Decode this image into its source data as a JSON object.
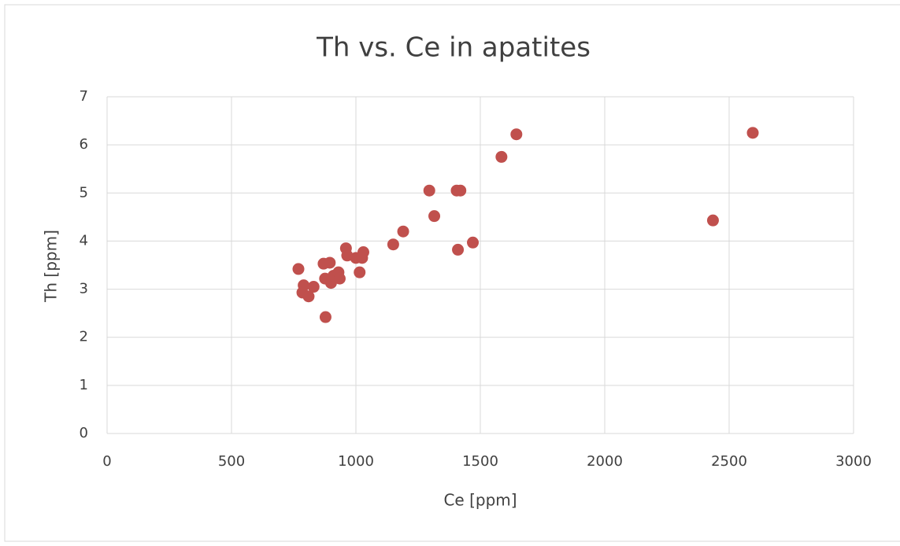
{
  "chart_data": {
    "type": "scatter",
    "title": "Th vs. Ce in apatites",
    "x_label": "Ce [ppm]",
    "y_label": "Th [ppm]",
    "series": [
      {
        "color": "#c0504d",
        "x": [
          769,
          790,
          785,
          810,
          830,
          870,
          878,
          876,
          895,
          900,
          910,
          930,
          935,
          960,
          965,
          1000,
          1015,
          1025,
          1030,
          1150,
          1190,
          1295,
          1315,
          1405,
          1420,
          1410,
          1470,
          1585,
          1645,
          2435,
          2595
        ],
        "values": [
          3.42,
          3.08,
          2.93,
          2.85,
          3.05,
          3.53,
          2.42,
          3.22,
          3.55,
          3.13,
          3.28,
          3.35,
          3.22,
          3.85,
          3.7,
          3.65,
          3.35,
          3.65,
          3.77,
          3.93,
          4.2,
          5.05,
          4.52,
          5.05,
          5.05,
          3.82,
          3.97,
          5.75,
          6.22,
          4.43,
          6.25
        ]
      }
    ],
    "xlim": [
      0,
      3000
    ],
    "xticks": [
      0,
      500,
      1000,
      1500,
      2000,
      2500,
      3000
    ],
    "ylim": [
      0,
      7
    ],
    "yticks": [
      0,
      1,
      2,
      3,
      4,
      5,
      6,
      7
    ],
    "grid": true
  }
}
